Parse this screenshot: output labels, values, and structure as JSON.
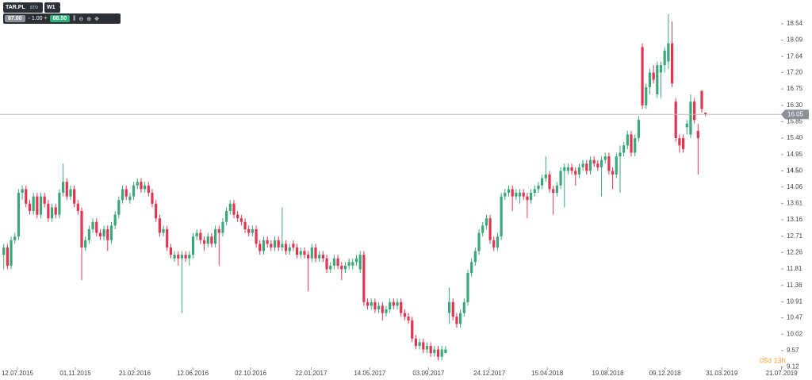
{
  "toolbar": {
    "symbol": "TAR.PL",
    "exchange": "STO",
    "timeframe": "W1",
    "bid": "87.00",
    "minus": "-",
    "lot": "1.00",
    "plus": "+",
    "ask": "88.50"
  },
  "chart_data": {
    "type": "candlestick",
    "up_color": "#3aa87a",
    "down_color": "#e3344f",
    "xlim": [
      -1,
      210
    ],
    "ylim": [
      8.85,
      19.19
    ],
    "yticks": [
      9.12,
      9.57,
      10.02,
      10.47,
      10.91,
      11.36,
      11.81,
      12.26,
      12.71,
      13.16,
      13.61,
      14.06,
      14.5,
      {
        "value": 14.5,
        "label": "14.50"
      },
      14.95,
      {
        "value": 15.4,
        "label": "15.40"
      },
      15.85,
      {
        "value": 16.3,
        "label": "16.30"
      },
      16.75,
      {
        "value": 17.2,
        "label": "17.20"
      },
      17.64,
      18.09,
      18.54
    ],
    "xticks": [
      {
        "value": 3.7,
        "label": "12.07.2015"
      },
      {
        "value": 19.3,
        "label": "01.11.2015"
      },
      {
        "value": 35.3,
        "label": "21.02.2016"
      },
      {
        "value": 50.9,
        "label": "12.06.2016"
      },
      {
        "value": 66.5,
        "label": "02.10.2016"
      },
      {
        "value": 82.8,
        "label": "22.01.2017"
      },
      {
        "value": 98.6,
        "label": "14.05.2017"
      },
      {
        "value": 114.4,
        "label": "03.09.2017"
      },
      {
        "value": 130.8,
        "label": "24.12.2017"
      },
      {
        "value": 146.4,
        "label": "15.04.2018"
      },
      {
        "value": 162.7,
        "label": "19.08.2018"
      },
      {
        "value": 178.1,
        "label": "09.12.2018"
      },
      {
        "value": 193.4,
        "label": "31.03.2019"
      },
      {
        "value": 209.5,
        "label": "21.07.2019"
      }
    ],
    "last_price": 16.05,
    "countdown": "05d 13h",
    "ohlc": [
      [
        12.2,
        12.5,
        11.8,
        12.4
      ],
      [
        12.4,
        12.5,
        11.8,
        11.9
      ],
      [
        11.9,
        12.7,
        11.8,
        12.6
      ],
      [
        12.6,
        12.8,
        12.5,
        12.7
      ],
      [
        12.7,
        14.0,
        12.6,
        13.9
      ],
      [
        13.9,
        14.1,
        13.7,
        14.0
      ],
      [
        14.0,
        14.1,
        13.5,
        13.6
      ],
      [
        13.6,
        13.7,
        13.3,
        13.4
      ],
      [
        13.4,
        13.9,
        13.3,
        13.8
      ],
      [
        13.8,
        13.9,
        13.2,
        13.3
      ],
      [
        13.3,
        13.9,
        13.2,
        13.8
      ],
      [
        13.8,
        13.9,
        13.5,
        13.6
      ],
      [
        13.6,
        13.7,
        13.1,
        13.2
      ],
      [
        13.2,
        13.6,
        13.1,
        13.5
      ],
      [
        13.5,
        13.6,
        13.2,
        13.3
      ],
      [
        13.3,
        14.0,
        13.2,
        13.9
      ],
      [
        13.9,
        14.7,
        13.8,
        14.2
      ],
      [
        14.2,
        14.3,
        13.7,
        13.8
      ],
      [
        13.8,
        14.1,
        13.7,
        14.0
      ],
      [
        14.0,
        14.1,
        13.5,
        13.6
      ],
      [
        13.6,
        13.7,
        13.3,
        13.4
      ],
      [
        13.4,
        13.5,
        11.5,
        12.4
      ],
      [
        12.4,
        12.7,
        12.3,
        12.6
      ],
      [
        12.6,
        13.0,
        12.5,
        12.9
      ],
      [
        12.9,
        13.2,
        12.8,
        13.1
      ],
      [
        13.1,
        13.2,
        12.7,
        12.8
      ],
      [
        12.8,
        12.9,
        12.6,
        12.7
      ],
      [
        12.7,
        13.0,
        12.6,
        12.9
      ],
      [
        12.9,
        13.0,
        12.3,
        12.6
      ],
      [
        12.6,
        13.1,
        12.5,
        13.0
      ],
      [
        13.0,
        13.4,
        12.9,
        13.3
      ],
      [
        13.3,
        13.8,
        13.2,
        13.7
      ],
      [
        13.7,
        14.1,
        13.6,
        14.0
      ],
      [
        14.0,
        14.1,
        13.7,
        13.8
      ],
      [
        13.7,
        13.9,
        13.6,
        13.8
      ],
      [
        13.8,
        14.2,
        13.7,
        14.1
      ],
      [
        14.1,
        14.3,
        14.0,
        14.2
      ],
      [
        14.2,
        14.3,
        13.9,
        14.0
      ],
      [
        14.0,
        14.2,
        13.9,
        14.1
      ],
      [
        14.1,
        14.2,
        13.8,
        13.9
      ],
      [
        13.9,
        14.0,
        13.5,
        13.6
      ],
      [
        13.6,
        13.7,
        13.1,
        13.2
      ],
      [
        13.2,
        13.3,
        12.7,
        12.8
      ],
      [
        12.8,
        13.0,
        12.7,
        12.9
      ],
      [
        12.9,
        13.0,
        12.3,
        12.4
      ],
      [
        12.4,
        12.5,
        12.1,
        12.2
      ],
      [
        12.1,
        12.3,
        12.0,
        12.2
      ],
      [
        12.2,
        12.3,
        11.9,
        12.1
      ],
      [
        12.1,
        12.3,
        10.6,
        12.2
      ],
      [
        12.2,
        12.3,
        12.0,
        12.1
      ],
      [
        12.1,
        12.3,
        11.9,
        12.2
      ],
      [
        12.2,
        12.8,
        12.1,
        12.7
      ],
      [
        12.7,
        12.9,
        12.6,
        12.8
      ],
      [
        12.8,
        12.9,
        12.5,
        12.6
      ],
      [
        12.6,
        12.7,
        12.3,
        12.5
      ],
      [
        12.5,
        12.8,
        12.4,
        12.7
      ],
      [
        12.7,
        12.8,
        12.4,
        12.5
      ],
      [
        12.5,
        13.0,
        12.4,
        12.9
      ],
      [
        12.9,
        13.0,
        11.9,
        12.8
      ],
      [
        12.8,
        13.2,
        12.7,
        13.1
      ],
      [
        13.1,
        13.5,
        13.0,
        13.4
      ],
      [
        13.4,
        13.7,
        13.3,
        13.6
      ],
      [
        13.6,
        13.7,
        13.2,
        13.3
      ],
      [
        13.3,
        13.4,
        13.1,
        13.2
      ],
      [
        13.2,
        13.3,
        13.0,
        13.1
      ],
      [
        13.1,
        13.2,
        12.8,
        12.9
      ],
      [
        12.9,
        13.0,
        12.7,
        12.8
      ],
      [
        12.8,
        13.0,
        12.7,
        12.9
      ],
      [
        12.9,
        13.0,
        12.4,
        12.5
      ],
      [
        12.5,
        12.6,
        12.2,
        12.3
      ],
      [
        12.3,
        12.7,
        12.2,
        12.6
      ],
      [
        12.6,
        12.7,
        12.4,
        12.5
      ],
      [
        12.5,
        12.6,
        12.3,
        12.4
      ],
      [
        12.4,
        12.7,
        12.3,
        12.6
      ],
      [
        12.6,
        12.7,
        12.3,
        12.4
      ],
      [
        12.4,
        13.5,
        12.3,
        12.5
      ],
      [
        12.5,
        12.6,
        12.2,
        12.3
      ],
      [
        12.3,
        12.5,
        12.2,
        12.4
      ],
      [
        12.5,
        12.6,
        12.3,
        12.4
      ],
      [
        12.4,
        12.5,
        12.1,
        12.2
      ],
      [
        12.2,
        12.4,
        12.1,
        12.3
      ],
      [
        12.3,
        12.4,
        12.1,
        12.2
      ],
      [
        12.2,
        12.3,
        11.2,
        12.1
      ],
      [
        12.1,
        12.5,
        12.0,
        12.4
      ],
      [
        12.4,
        12.5,
        12.0,
        12.1
      ],
      [
        12.1,
        12.3,
        12.0,
        12.2
      ],
      [
        12.2,
        12.3,
        12.0,
        12.1
      ],
      [
        12.1,
        12.2,
        11.7,
        11.8
      ],
      [
        11.8,
        12.0,
        11.7,
        11.9
      ],
      [
        11.9,
        12.2,
        11.8,
        12.1
      ],
      [
        12.1,
        12.2,
        11.8,
        11.9
      ],
      [
        11.9,
        12.0,
        11.5,
        11.8
      ],
      [
        11.8,
        12.0,
        11.7,
        11.9
      ],
      [
        11.9,
        12.1,
        11.8,
        12.0
      ],
      [
        11.9,
        12.1,
        11.8,
        12.0
      ],
      [
        12.0,
        12.2,
        11.9,
        12.1
      ],
      [
        11.8,
        12.3,
        11.7,
        12.2
      ],
      [
        12.2,
        12.3,
        10.8,
        10.9
      ],
      [
        10.9,
        11.0,
        10.7,
        10.8
      ],
      [
        10.8,
        11.0,
        10.7,
        10.9
      ],
      [
        10.9,
        11.0,
        10.6,
        10.7
      ],
      [
        10.7,
        10.9,
        10.6,
        10.8
      ],
      [
        10.8,
        10.9,
        10.4,
        10.6
      ],
      [
        10.6,
        10.8,
        10.5,
        10.7
      ],
      [
        10.7,
        11.0,
        10.6,
        10.9
      ],
      [
        10.9,
        11.0,
        10.7,
        10.8
      ],
      [
        10.8,
        11.0,
        10.7,
        10.9
      ],
      [
        10.9,
        11.0,
        10.5,
        10.6
      ],
      [
        10.6,
        10.7,
        10.4,
        10.5
      ],
      [
        10.5,
        10.6,
        10.3,
        10.4
      ],
      [
        10.4,
        10.5,
        9.8,
        9.9
      ],
      [
        9.9,
        10.0,
        9.6,
        9.7
      ],
      [
        9.7,
        9.9,
        9.6,
        9.8
      ],
      [
        9.8,
        9.9,
        9.5,
        9.6
      ],
      [
        9.6,
        9.8,
        9.5,
        9.7
      ],
      [
        9.7,
        9.8,
        9.4,
        9.5
      ],
      [
        9.5,
        9.7,
        9.4,
        9.6
      ],
      [
        9.6,
        9.7,
        9.3,
        9.4
      ],
      [
        9.4,
        9.7,
        9.3,
        9.6
      ],
      [
        9.5,
        9.7,
        9.5,
        9.6
      ],
      [
        10.6,
        11.3,
        10.3,
        10.9
      ],
      [
        10.9,
        11.0,
        10.4,
        10.5
      ],
      [
        10.5,
        10.6,
        10.2,
        10.3
      ],
      [
        10.3,
        10.7,
        10.2,
        10.6
      ],
      [
        10.6,
        11.0,
        10.5,
        10.9
      ],
      [
        10.9,
        11.8,
        10.8,
        11.7
      ],
      [
        11.7,
        12.1,
        11.6,
        12.0
      ],
      [
        12.0,
        12.4,
        11.9,
        12.3
      ],
      [
        12.3,
        12.9,
        12.2,
        12.8
      ],
      [
        12.8,
        13.1,
        12.7,
        13.0
      ],
      [
        13.0,
        13.3,
        12.9,
        13.2
      ],
      [
        13.2,
        13.3,
        12.5,
        12.6
      ],
      [
        12.6,
        12.7,
        12.3,
        12.4
      ],
      [
        12.4,
        12.8,
        12.3,
        12.7
      ],
      [
        12.7,
        13.9,
        12.6,
        13.8
      ],
      [
        13.8,
        14.0,
        13.7,
        13.9
      ],
      [
        13.9,
        14.1,
        13.8,
        14.0
      ],
      [
        14.0,
        14.1,
        13.4,
        13.8
      ],
      [
        13.8,
        14.0,
        13.7,
        13.9
      ],
      [
        13.8,
        14.0,
        13.6,
        13.9
      ],
      [
        13.9,
        14.0,
        13.7,
        13.8
      ],
      [
        13.8,
        13.9,
        13.2,
        13.7
      ],
      [
        13.7,
        14.0,
        13.6,
        13.9
      ],
      [
        13.9,
        14.1,
        13.8,
        14.0
      ],
      [
        14.0,
        14.2,
        13.9,
        14.1
      ],
      [
        14.1,
        14.4,
        14.0,
        14.3
      ],
      [
        14.3,
        14.9,
        14.2,
        14.4
      ],
      [
        14.4,
        14.5,
        13.9,
        14.0
      ],
      [
        14.0,
        14.1,
        13.3,
        13.9
      ],
      [
        13.9,
        14.2,
        13.8,
        14.1
      ],
      [
        14.1,
        14.6,
        14.0,
        14.5
      ],
      [
        14.5,
        14.7,
        13.5,
        14.6
      ],
      [
        14.5,
        14.7,
        14.4,
        14.6
      ],
      [
        14.6,
        14.7,
        14.4,
        14.5
      ],
      [
        14.5,
        14.6,
        14.1,
        14.4
      ],
      [
        14.4,
        14.7,
        14.3,
        14.6
      ],
      [
        14.6,
        14.8,
        14.5,
        14.7
      ],
      [
        14.7,
        14.8,
        14.4,
        14.5
      ],
      [
        14.5,
        14.9,
        14.4,
        14.8
      ],
      [
        14.8,
        14.9,
        14.6,
        14.7
      ],
      [
        14.7,
        14.8,
        14.5,
        14.6
      ],
      [
        14.6,
        14.9,
        13.8,
        14.8
      ],
      [
        14.8,
        15.0,
        14.7,
        14.9
      ],
      [
        14.9,
        15.0,
        14.4,
        14.5
      ],
      [
        14.5,
        14.6,
        14.0,
        14.4
      ],
      [
        14.4,
        15.0,
        14.3,
        14.9
      ],
      [
        14.9,
        15.2,
        13.9,
        15.0
      ],
      [
        15.0,
        15.3,
        14.9,
        15.2
      ],
      [
        15.2,
        15.6,
        15.1,
        15.5
      ],
      [
        15.5,
        15.6,
        14.9,
        15.0
      ],
      [
        15.0,
        15.5,
        14.9,
        15.4
      ],
      [
        15.4,
        16.0,
        15.3,
        15.9
      ],
      [
        17.9,
        18.0,
        16.2,
        16.3
      ],
      [
        16.3,
        16.9,
        16.2,
        16.8
      ],
      [
        16.8,
        17.3,
        16.6,
        17.2
      ],
      [
        17.2,
        17.4,
        16.9,
        17.0
      ],
      [
        16.6,
        17.5,
        16.5,
        17.4
      ],
      [
        17.2,
        17.5,
        16.5,
        17.4
      ],
      [
        17.4,
        17.9,
        17.2,
        17.8
      ],
      [
        17.5,
        18.8,
        17.3,
        18.0
      ],
      [
        18.0,
        18.6,
        16.8,
        16.9
      ],
      [
        16.4,
        16.5,
        15.3,
        15.4
      ],
      [
        15.4,
        15.5,
        15.0,
        15.2
      ],
      [
        15.4,
        15.5,
        15.0,
        15.1
      ],
      [
        15.7,
        15.9,
        15.5,
        15.8
      ],
      [
        15.5,
        16.6,
        15.4,
        16.4
      ],
      [
        16.4,
        16.5,
        15.8,
        15.9
      ],
      [
        15.6,
        15.8,
        14.4,
        15.4
      ],
      [
        16.7,
        16.7,
        16.1,
        16.2
      ],
      [
        16.1,
        16.1,
        16.0,
        16.05
      ]
    ]
  }
}
